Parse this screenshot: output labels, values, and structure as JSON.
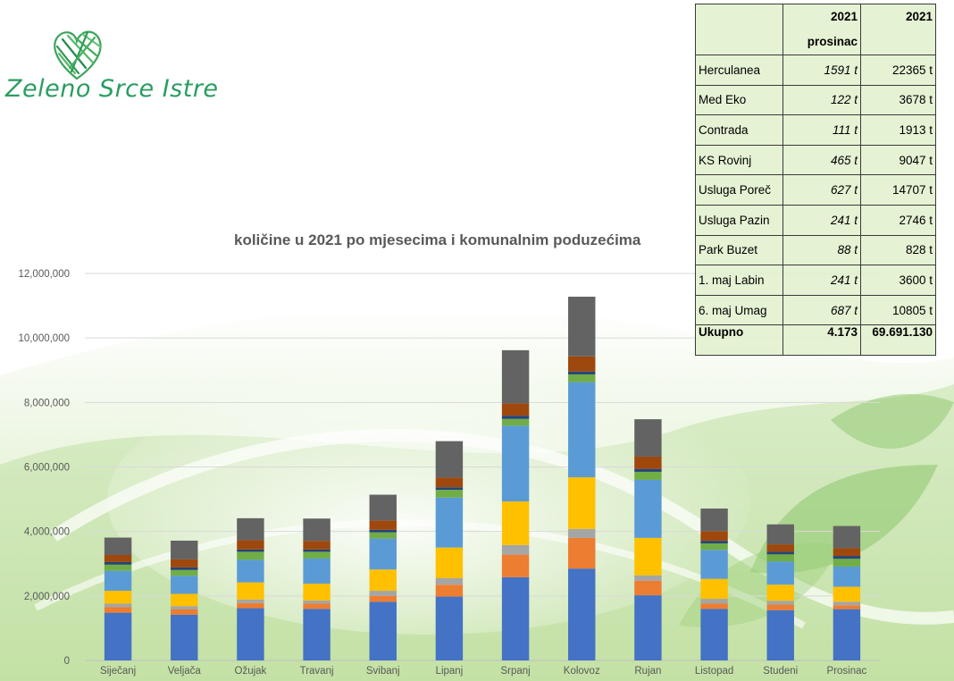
{
  "logo": {
    "text": "Zeleno Srce Istre"
  },
  "table": {
    "headers": [
      "",
      "2021 prosinac",
      "2021"
    ],
    "rows": [
      {
        "name": "Herculanea",
        "dec": "1591 t",
        "year": "22365 t"
      },
      {
        "name": "Med Eko",
        "dec": "122 t",
        "year": "3678 t"
      },
      {
        "name": "Contrada",
        "dec": "111 t",
        "year": "1913 t"
      },
      {
        "name": "KS Rovinj",
        "dec": "465 t",
        "year": "9047 t"
      },
      {
        "name": "Usluga Poreč",
        "dec": "627 t",
        "year": "14707 t"
      },
      {
        "name": "Usluga Pazin",
        "dec": "241 t",
        "year": "2746 t"
      },
      {
        "name": "Park Buzet",
        "dec": "88 t",
        "year": "828 t"
      },
      {
        "name": "1. maj Labin",
        "dec": "241 t",
        "year": "3600 t"
      },
      {
        "name": "6. maj Umag",
        "dec": "687 t",
        "year": "10805 t"
      }
    ],
    "total": {
      "name": "Ukupno",
      "dec": "4.173",
      "year": "69.691.130"
    }
  },
  "chart_data": {
    "type": "bar",
    "stacked": true,
    "title": "količine u 2021 po mjesecima i komunalnim poduzećima",
    "xlabel": "",
    "ylabel": "",
    "ylim": [
      0,
      12000000
    ],
    "yticks": [
      0,
      2000000,
      4000000,
      6000000,
      8000000,
      10000000,
      12000000
    ],
    "ytick_labels": [
      "0",
      "2,000,000",
      "4,000,000",
      "6,000,000",
      "8,000,000",
      "10,000,000",
      "12,000,000"
    ],
    "grid": true,
    "categories": [
      "Siječanj",
      "Veljača",
      "Ožujak",
      "Travanj",
      "Svibanj",
      "Lipanj",
      "Srpanj",
      "Kolovoz",
      "Rujan",
      "Listopad",
      "Studeni",
      "Prosinac"
    ],
    "series": [
      {
        "color": "#4472c4",
        "values": [
          1480000,
          1420000,
          1620000,
          1600000,
          1820000,
          1980000,
          2580000,
          2850000,
          2020000,
          1600000,
          1560000,
          1590000
        ]
      },
      {
        "color": "#ed7d31",
        "values": [
          170000,
          160000,
          160000,
          160000,
          180000,
          370000,
          700000,
          950000,
          450000,
          160000,
          170000,
          120000
        ]
      },
      {
        "color": "#a5a5a5",
        "values": [
          110000,
          105000,
          110000,
          100000,
          160000,
          200000,
          300000,
          280000,
          170000,
          150000,
          120000,
          110000
        ]
      },
      {
        "color": "#ffc000",
        "values": [
          400000,
          380000,
          530000,
          520000,
          660000,
          950000,
          1350000,
          1600000,
          1160000,
          620000,
          500000,
          465000
        ]
      },
      {
        "color": "#5b9bd5",
        "values": [
          620000,
          560000,
          700000,
          780000,
          960000,
          1550000,
          2350000,
          2950000,
          1800000,
          900000,
          720000,
          627000
        ]
      },
      {
        "color": "#70ad47",
        "values": [
          190000,
          180000,
          250000,
          210000,
          190000,
          240000,
          210000,
          240000,
          250000,
          200000,
          220000,
          241000
        ]
      },
      {
        "color": "#264478",
        "values": [
          80000,
          80000,
          70000,
          70000,
          80000,
          80000,
          100000,
          90000,
          90000,
          80000,
          80000,
          88000
        ]
      },
      {
        "color": "#9e480e",
        "values": [
          220000,
          250000,
          290000,
          270000,
          290000,
          300000,
          380000,
          470000,
          380000,
          300000,
          230000,
          241000
        ]
      },
      {
        "color": "#636363",
        "values": [
          540000,
          580000,
          680000,
          690000,
          800000,
          1130000,
          1650000,
          1850000,
          1160000,
          700000,
          620000,
          687000
        ]
      }
    ]
  }
}
